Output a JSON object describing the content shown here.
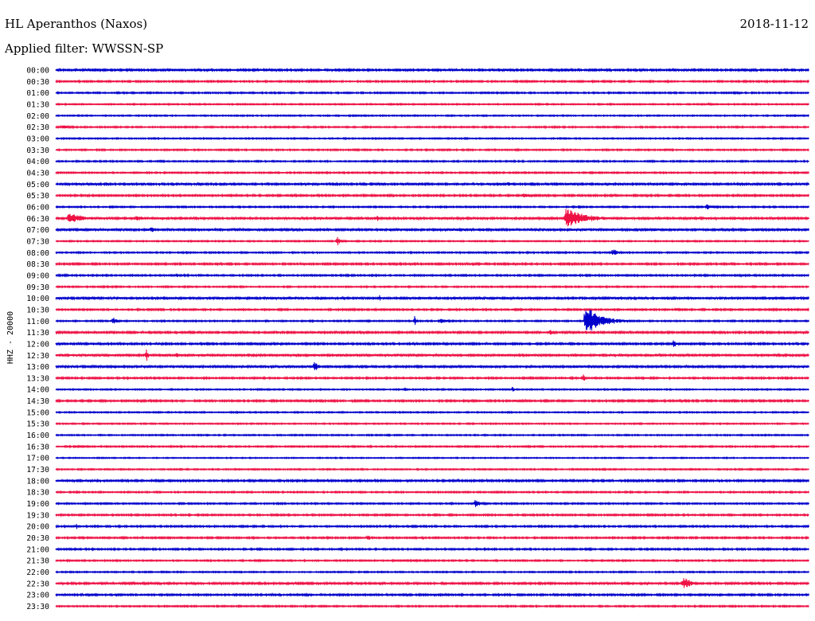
{
  "header": {
    "station": "HL Aperanthos (Naxos)",
    "filter_line": "Applied filter: WWSSN-SP",
    "date": "2018-11-12"
  },
  "colors": {
    "even_trace": "#0000cc",
    "odd_trace": "#ee1144",
    "text": "#000000",
    "background": "#ffffff"
  },
  "chart_data": {
    "type": "line",
    "title": "HL Aperanthos (Naxos)",
    "subtitle": "Applied filter: WWSSN-SP",
    "date": "2018-11-12",
    "ylabel": "HHZ - 20000",
    "xlabel": "",
    "grid": false,
    "x_range_minutes": [
      0,
      30
    ],
    "categories": [
      "00:00",
      "00:30",
      "01:00",
      "01:30",
      "02:00",
      "02:30",
      "03:00",
      "03:30",
      "04:00",
      "04:30",
      "05:00",
      "05:30",
      "06:00",
      "06:30",
      "07:00",
      "07:30",
      "08:00",
      "08:30",
      "09:00",
      "09:30",
      "10:00",
      "10:30",
      "11:00",
      "11:30",
      "12:00",
      "12:30",
      "13:00",
      "13:30",
      "14:00",
      "14:30",
      "15:00",
      "15:30",
      "16:00",
      "16:30",
      "17:00",
      "17:30",
      "18:00",
      "18:30",
      "19:00",
      "19:30",
      "20:00",
      "20:30",
      "21:00",
      "21:30",
      "22:00",
      "22:30",
      "23:00",
      "23:30"
    ],
    "noise": [
      1.2,
      1.0,
      0.9,
      0.8,
      0.8,
      0.9,
      0.8,
      0.9,
      0.9,
      0.9,
      1.3,
      1.1,
      0.9,
      1.3,
      1.4,
      0.8,
      0.9,
      1.1,
      1.0,
      0.9,
      1.4,
      1.0,
      0.9,
      1.2,
      1.2,
      1.5,
      1.4,
      1.0,
      0.8,
      1.1,
      0.8,
      0.8,
      0.8,
      0.9,
      0.7,
      0.8,
      1.2,
      0.9,
      0.9,
      1.0,
      1.0,
      1.0,
      1.0,
      0.9,
      0.8,
      1.2,
      1.1,
      0.9
    ],
    "events": [
      {
        "row": 0,
        "minute": 27.5,
        "amplitude": 2,
        "duration_min": 1.2
      },
      {
        "row": 1,
        "minute": 18.8,
        "amplitude": 2,
        "duration_min": 0.8
      },
      {
        "row": 2,
        "minute": 27.2,
        "amplitude": 2,
        "duration_min": 0.3
      },
      {
        "row": 3,
        "minute": 26.0,
        "amplitude": 2,
        "duration_min": 0.6
      },
      {
        "row": 5,
        "minute": 0.2,
        "amplitude": 3,
        "duration_min": 1.3
      },
      {
        "row": 10,
        "minute": 18.0,
        "amplitude": 3,
        "duration_min": 0.8
      },
      {
        "row": 11,
        "minute": 18.6,
        "amplitude": 4,
        "duration_min": 1.2
      },
      {
        "row": 12,
        "minute": 25.9,
        "amplitude": 4,
        "duration_min": 1.0
      },
      {
        "row": 13,
        "minute": 0.5,
        "amplitude": 8,
        "duration_min": 2.0
      },
      {
        "row": 13,
        "minute": 3.2,
        "amplitude": 3,
        "duration_min": 2.5
      },
      {
        "row": 13,
        "minute": 12.8,
        "amplitude": 4,
        "duration_min": 0.5
      },
      {
        "row": 13,
        "minute": 20.3,
        "amplitude": 14,
        "duration_min": 2.5
      },
      {
        "row": 14,
        "minute": 3.8,
        "amplitude": 5,
        "duration_min": 0.3
      },
      {
        "row": 15,
        "minute": 11.2,
        "amplitude": 6,
        "duration_min": 0.6
      },
      {
        "row": 16,
        "minute": 22.2,
        "amplitude": 8,
        "duration_min": 0.5
      },
      {
        "row": 18,
        "minute": 4.8,
        "amplitude": 3,
        "duration_min": 0.5
      },
      {
        "row": 18,
        "minute": 12.5,
        "amplitude": 2,
        "duration_min": 0.6
      },
      {
        "row": 20,
        "minute": 12.9,
        "amplitude": 6,
        "duration_min": 0.2
      },
      {
        "row": 21,
        "minute": 24.7,
        "amplitude": 3,
        "duration_min": 0.5
      },
      {
        "row": 22,
        "minute": 2.3,
        "amplitude": 6,
        "duration_min": 0.4
      },
      {
        "row": 22,
        "minute": 14.3,
        "amplitude": 8,
        "duration_min": 0.2
      },
      {
        "row": 22,
        "minute": 15.3,
        "amplitude": 3,
        "duration_min": 1.5
      },
      {
        "row": 22,
        "minute": 21.1,
        "amplitude": 20,
        "duration_min": 2.0
      },
      {
        "row": 23,
        "minute": 19.7,
        "amplitude": 6,
        "duration_min": 0.3
      },
      {
        "row": 24,
        "minute": 24.6,
        "amplitude": 6,
        "duration_min": 0.4
      },
      {
        "row": 25,
        "minute": 3.6,
        "amplitude": 9,
        "duration_min": 0.3
      },
      {
        "row": 25,
        "minute": 4.8,
        "amplitude": 4,
        "duration_min": 0.4
      },
      {
        "row": 26,
        "minute": 10.3,
        "amplitude": 8,
        "duration_min": 0.5
      },
      {
        "row": 27,
        "minute": 21.0,
        "amplitude": 6,
        "duration_min": 0.3
      },
      {
        "row": 28,
        "minute": 13.9,
        "amplitude": 3,
        "duration_min": 0.3
      },
      {
        "row": 28,
        "minute": 18.2,
        "amplitude": 4,
        "duration_min": 0.2
      },
      {
        "row": 29,
        "minute": 18.2,
        "amplitude": 2,
        "duration_min": 1.5
      },
      {
        "row": 38,
        "minute": 16.7,
        "amplitude": 6,
        "duration_min": 0.8
      },
      {
        "row": 40,
        "minute": 0.8,
        "amplitude": 5,
        "duration_min": 0.3
      },
      {
        "row": 41,
        "minute": 12.4,
        "amplitude": 4,
        "duration_min": 0.8
      },
      {
        "row": 45,
        "minute": 25.0,
        "amplitude": 10,
        "duration_min": 0.9
      }
    ],
    "series": [
      {
        "name": "even rows",
        "color": "#0000cc"
      },
      {
        "name": "odd rows",
        "color": "#ee1144"
      }
    ]
  }
}
